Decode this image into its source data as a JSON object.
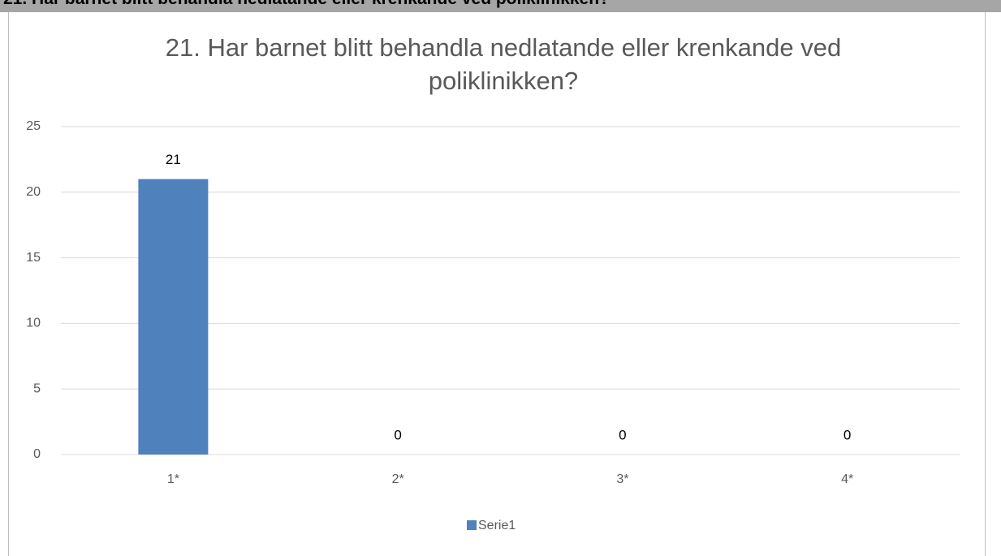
{
  "chart_data": {
    "type": "bar",
    "heading": "21. Har barnet blitt behandla nedlatande eller krenkande ved poliklinikken?",
    "title": "21. Har barnet blitt behandla nedlatande eller krenkande ved poliklinikken?",
    "categories": [
      "1*",
      "2*",
      "3*",
      "4*"
    ],
    "series": [
      {
        "name": "Serie1",
        "color": "#4f81bd",
        "values": [
          21,
          0,
          0,
          0
        ]
      }
    ],
    "ylim": [
      0,
      25
    ],
    "yticks": [
      0,
      5,
      10,
      15,
      20,
      25
    ],
    "grid": true,
    "legend": "bottom"
  }
}
